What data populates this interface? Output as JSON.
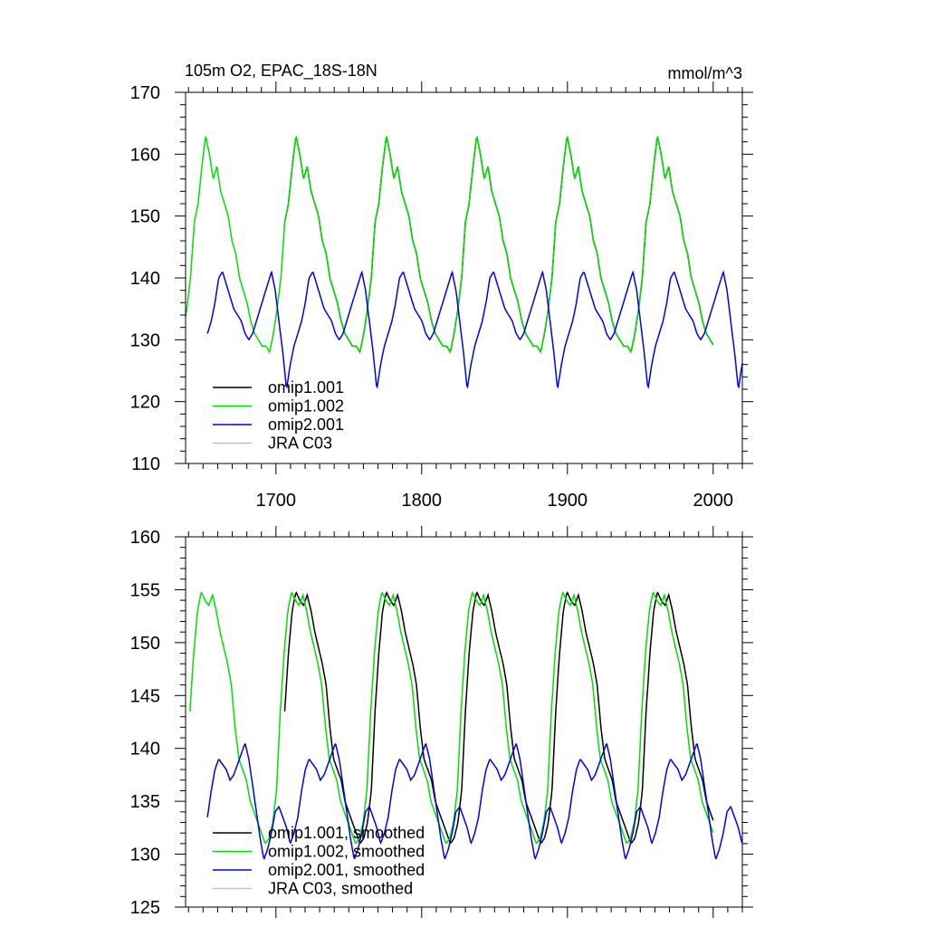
{
  "figure": {
    "title": "105m O2, EPAC_18S-18N",
    "units": "mmol/m^3"
  },
  "chart_data": [
    {
      "type": "line",
      "title": "105m O2, EPAC_18S-18N",
      "units_label": "mmol/m^3",
      "xlim": [
        1638,
        2020
      ],
      "ylim": [
        110,
        170
      ],
      "x_ticks": [
        1700,
        1800,
        1900,
        2000
      ],
      "y_ticks": [
        110,
        120,
        130,
        140,
        150,
        160,
        170
      ],
      "legend_position": "lower-left",
      "grid": false,
      "series": [
        {
          "name": "omip1.001",
          "color": "#000000",
          "x_start": 1706,
          "x_end": 2000,
          "cycle": {
            "period": 62,
            "phase_start": 1706
          },
          "values": [
            149,
            152,
            158,
            163,
            160,
            156,
            158,
            154,
            152,
            150,
            146,
            144,
            140,
            138,
            136,
            133,
            131,
            130,
            129,
            129,
            128,
            131,
            135,
            140,
            149
          ]
        },
        {
          "name": "omip1.002",
          "color": "#00e000",
          "x_start": 1638,
          "x_end": 2000,
          "cycle": {
            "period": 62,
            "phase_start": 1644
          },
          "values": [
            149,
            152,
            158,
            163,
            160,
            156,
            158,
            154,
            152,
            150,
            146,
            144,
            140,
            138,
            136,
            133,
            131,
            130,
            129,
            129,
            128,
            131,
            135,
            140,
            149
          ]
        },
        {
          "name": "omip2.001",
          "color": "#0000ee",
          "x_start": 1653,
          "x_end": 2020,
          "cycle": {
            "period": 62,
            "phase_start": 1653
          },
          "values": [
            131,
            133,
            136,
            140,
            141,
            139,
            137,
            135,
            134,
            133,
            131,
            130,
            131,
            133,
            135,
            137,
            139,
            141,
            138,
            133,
            128,
            122,
            126,
            129,
            131
          ]
        },
        {
          "name": "JRA C03",
          "color": "#c0c0c0",
          "values": []
        }
      ]
    },
    {
      "type": "line",
      "title": "",
      "xlim": [
        1638,
        2020
      ],
      "ylim": [
        125,
        160
      ],
      "x_ticks": [
        1700,
        1800,
        1900,
        2000
      ],
      "y_ticks": [
        125,
        130,
        135,
        140,
        145,
        150,
        155,
        160
      ],
      "legend_position": "lower-left",
      "grid": false,
      "series": [
        {
          "name": "omip1.001, smoothed",
          "color": "#000000",
          "x_start": 1706,
          "x_end": 2000,
          "cycle": {
            "period": 62,
            "phase_start": 1706
          },
          "values": [
            143.5,
            149,
            153,
            154.8,
            154,
            153.5,
            154.5,
            153,
            151,
            149.5,
            148,
            146,
            142,
            139,
            138,
            137,
            135,
            134,
            133,
            132,
            131,
            131.5,
            133,
            136,
            143.5
          ]
        },
        {
          "name": "omip1.002, smoothed",
          "color": "#00e000",
          "x_start": 1641,
          "x_end": 2000,
          "cycle": {
            "period": 62,
            "phase_start": 1641
          },
          "values": [
            143.5,
            149,
            153,
            154.8,
            154,
            153.5,
            154.5,
            153,
            151,
            149.5,
            148,
            146,
            142,
            139,
            138,
            137,
            135,
            134,
            133,
            132,
            131,
            131.5,
            133,
            136,
            143.5
          ]
        },
        {
          "name": "omip2.001, smoothed",
          "color": "#0000ee",
          "x_start": 1653,
          "x_end": 2020,
          "cycle": {
            "period": 62,
            "phase_start": 1653
          },
          "values": [
            133.5,
            136,
            138,
            139,
            138.5,
            138,
            137,
            137.5,
            138.5,
            139.5,
            140.5,
            139,
            136.5,
            134,
            131.5,
            129.5,
            130.5,
            132,
            134,
            134.5,
            133.5,
            132.5,
            131,
            132,
            133.5
          ]
        },
        {
          "name": "JRA C03, smoothed",
          "color": "#c0c0c0",
          "values": []
        }
      ]
    }
  ]
}
